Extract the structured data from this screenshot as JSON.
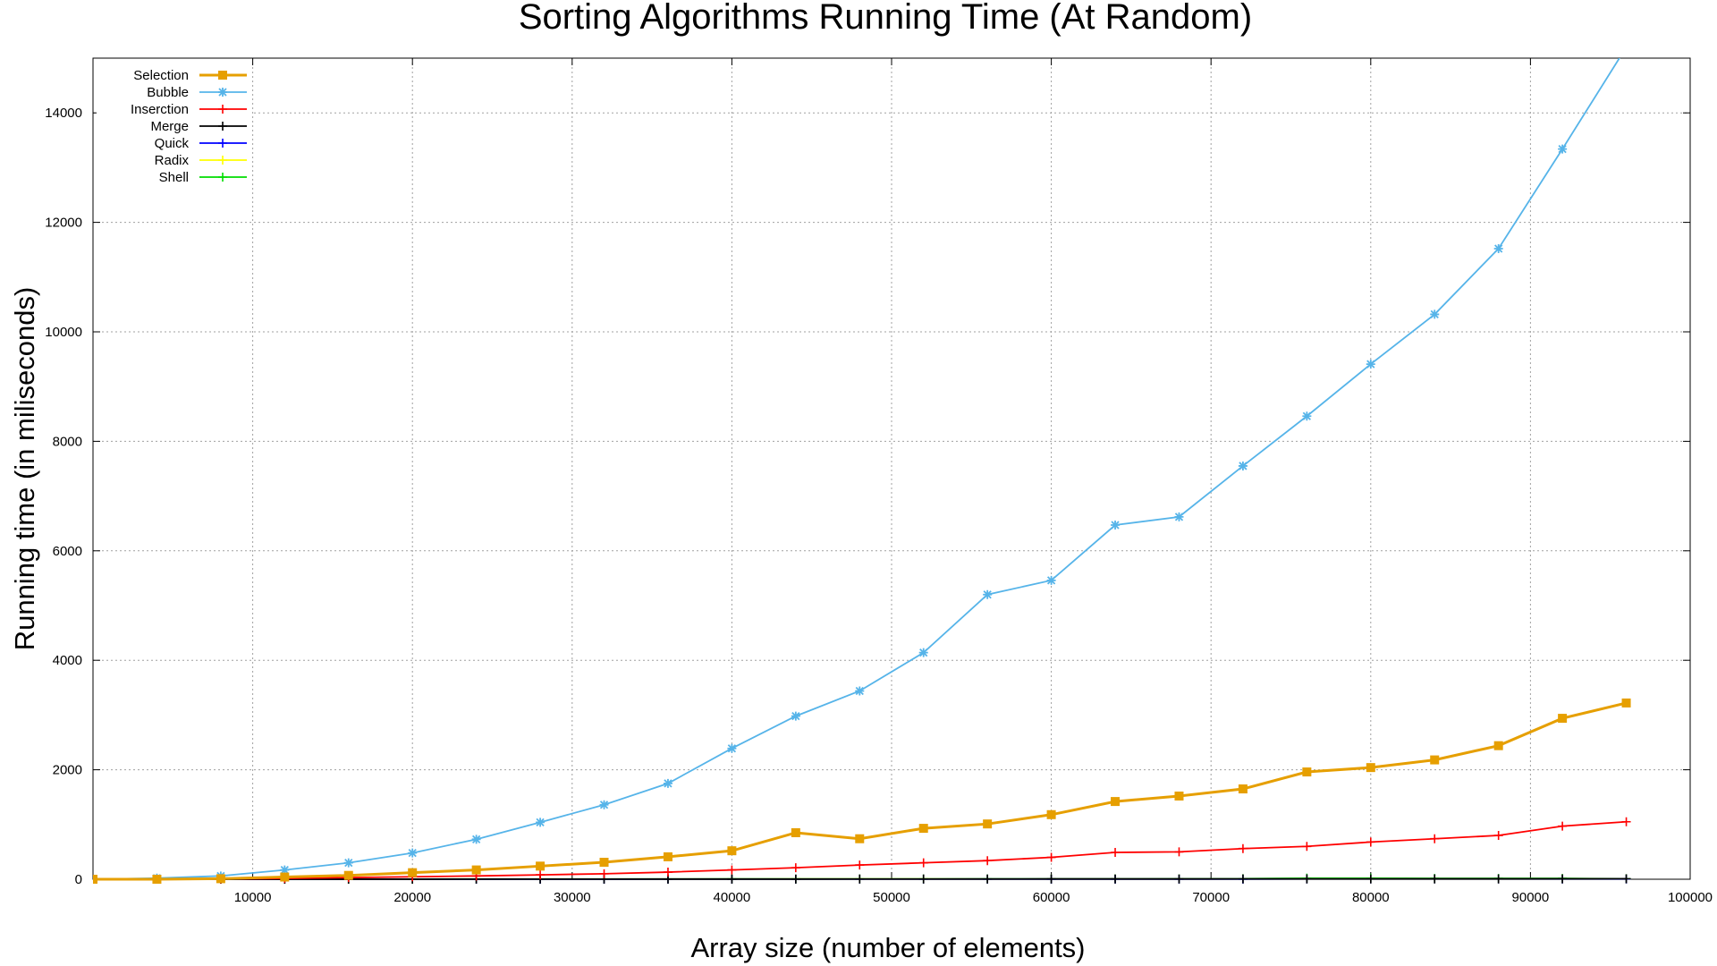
{
  "chart_data": {
    "type": "line",
    "title": "Sorting Algorithms Running Time (At Random)",
    "xlabel": "Array size (number of elements)",
    "ylabel": "Running time (in miliseconds)",
    "xlim": [
      0,
      100000
    ],
    "ylim": [
      0,
      15000
    ],
    "xticks": [
      10000,
      20000,
      30000,
      40000,
      50000,
      60000,
      70000,
      80000,
      90000,
      100000
    ],
    "yticks": [
      0,
      2000,
      4000,
      6000,
      8000,
      10000,
      12000,
      14000
    ],
    "grid": true,
    "legend_position": "top-left",
    "x": [
      0,
      4000,
      8000,
      12000,
      16000,
      20000,
      24000,
      28000,
      32000,
      36000,
      40000,
      44000,
      48000,
      52000,
      56000,
      60000,
      64000,
      68000,
      72000,
      76000,
      80000,
      84000,
      88000,
      92000,
      96000
    ],
    "series": [
      {
        "name": "Selection",
        "color": "#e69f00",
        "marker": "square",
        "values": [
          0,
          0,
          10,
          40,
          70,
          120,
          170,
          240,
          310,
          410,
          520,
          850,
          740,
          930,
          1010,
          1180,
          1420,
          1520,
          1650,
          1960,
          2040,
          2180,
          2440,
          2940,
          3220
        ]
      },
      {
        "name": "Bubble",
        "color": "#56b4e9",
        "marker": "asterisk",
        "values": [
          0,
          20,
          60,
          170,
          300,
          480,
          730,
          1040,
          1360,
          1750,
          2390,
          2980,
          3440,
          4140,
          5200,
          5460,
          6470,
          6620,
          7550,
          8460,
          9410,
          10320,
          11520,
          13340,
          15200
        ]
      },
      {
        "name": "Inserction",
        "color": "#ff0000",
        "marker": "plus",
        "values": [
          0,
          0,
          5,
          15,
          30,
          45,
          60,
          80,
          100,
          130,
          170,
          210,
          260,
          300,
          340,
          400,
          490,
          500,
          560,
          600,
          680,
          740,
          800,
          970,
          1050
        ]
      },
      {
        "name": "Merge",
        "color": "#000000",
        "marker": "plus",
        "values": [
          0,
          0,
          0,
          1,
          1,
          1,
          2,
          2,
          2,
          3,
          3,
          3,
          4,
          4,
          4,
          5,
          5,
          5,
          6,
          6,
          6,
          7,
          7,
          7,
          8
        ]
      },
      {
        "name": "Quick",
        "color": "#0000ff",
        "marker": "plus",
        "values": [
          0,
          0,
          0,
          0,
          1,
          1,
          1,
          1,
          1,
          2,
          2,
          2,
          2,
          2,
          3,
          3,
          3,
          3,
          3,
          4,
          4,
          4,
          4,
          4,
          5
        ]
      },
      {
        "name": "Radix",
        "color": "#ffff00",
        "marker": "plus",
        "values": [
          0,
          0,
          0,
          1,
          1,
          1,
          1,
          2,
          2,
          2,
          2,
          3,
          3,
          3,
          3,
          4,
          4,
          4,
          4,
          5,
          5,
          5,
          5,
          6,
          6
        ]
      },
      {
        "name": "Shell",
        "color": "#00dd00",
        "marker": "plus",
        "values": [
          0,
          0,
          1,
          1,
          2,
          2,
          3,
          3,
          4,
          4,
          5,
          5,
          6,
          6,
          7,
          7,
          8,
          9,
          10,
          20,
          20,
          15,
          15,
          15,
          10
        ]
      }
    ]
  }
}
